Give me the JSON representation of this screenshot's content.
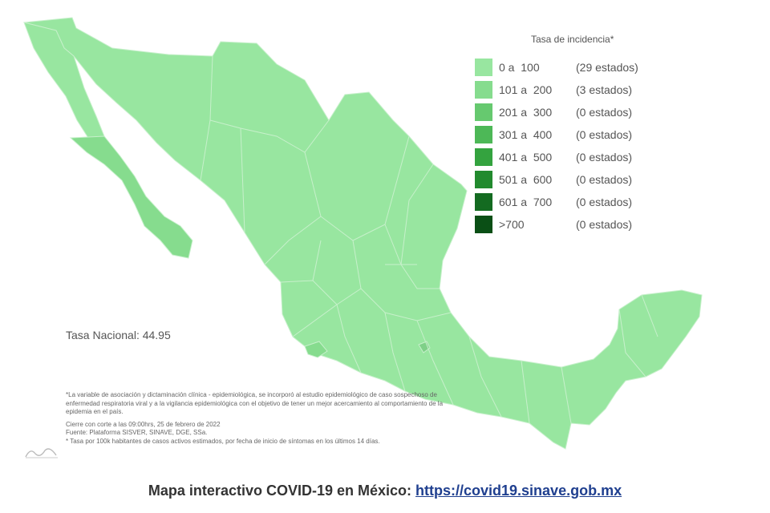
{
  "legend": {
    "title": "Tasa de incidencia*",
    "items": [
      {
        "range": "0 a  100",
        "count": "(29 estados)",
        "color": "#98e6a0"
      },
      {
        "range": "101 a  200",
        "count": "(3 estados)",
        "color": "#86dc8e"
      },
      {
        "range": "201 a  300",
        "count": "(0 estados)",
        "color": "#66c96f"
      },
      {
        "range": "301 a  400",
        "count": "(0 estados)",
        "color": "#4db857"
      },
      {
        "range": "401 a  500",
        "count": "(0 estados)",
        "color": "#34a33f"
      },
      {
        "range": "501 a  600",
        "count": "(0 estados)",
        "color": "#228a2e"
      },
      {
        "range": "601 a  700",
        "count": "(0 estados)",
        "color": "#146b21"
      },
      {
        "range": ">700",
        "count": "(0 estados)",
        "color": "#0a4f15"
      }
    ]
  },
  "tasa_nacional": "Tasa Nacional: 44.95",
  "notes": [
    "*La variable de asociación y dictaminación clínica - epidemiológica, se incorporó al estudio epidemiológico de caso sospechoso de enfermedad respiratoria viral y a la vigilancia epidemiológica con el objetivo de tener un mejor acercamiento al comportamiento de la epidemia en el país.",
    "Cierre con corte a las 09:00hrs, 25 de febrero de 2022",
    "Fuente: Plataforma SISVER, SINAVE, DGE, SSa.",
    "* Tasa por 100k habitantes de casos activos estimados, por fecha de inicio de síntomas en los últimos 14 días."
  ],
  "footer": {
    "text": "Mapa interactivo COVID-19 en México: ",
    "link": "https://covid19.sinave.gob.mx"
  },
  "map": {
    "base_color": "#98e6a0",
    "highlight_color": "#86dc8e",
    "border_color": "#c7f0cb"
  }
}
